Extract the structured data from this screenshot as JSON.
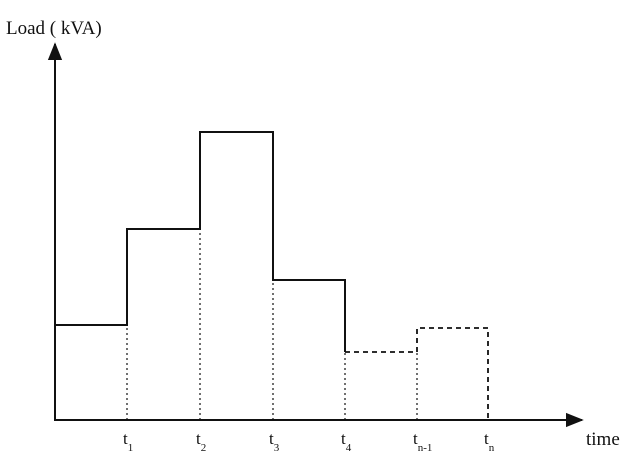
{
  "axes": {
    "y_label": "Load ( kVA)",
    "x_label": "time"
  },
  "time_points": [
    {
      "base": "t",
      "sub": "1"
    },
    {
      "base": "t",
      "sub": "2"
    },
    {
      "base": "t",
      "sub": "3"
    },
    {
      "base": "t",
      "sub": "4"
    },
    {
      "base": "t",
      "sub": "n-1"
    },
    {
      "base": "t",
      "sub": "n"
    }
  ]
}
